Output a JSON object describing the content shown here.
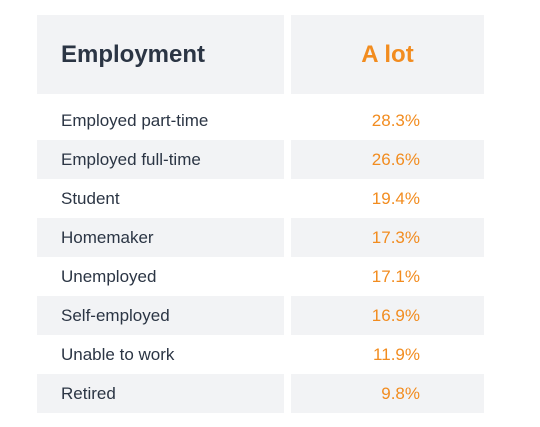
{
  "table": {
    "header": {
      "category": "Employment",
      "value": "A lot"
    },
    "rows": [
      {
        "label": "Employed part-time",
        "value": "28.3%"
      },
      {
        "label": "Employed full-time",
        "value": "26.6%"
      },
      {
        "label": "Student",
        "value": "19.4%"
      },
      {
        "label": "Homemaker",
        "value": "17.3%"
      },
      {
        "label": "Unemployed",
        "value": "17.1%"
      },
      {
        "label": "Self-employed",
        "value": "16.9%"
      },
      {
        "label": "Unable to work",
        "value": "11.9%"
      },
      {
        "label": "Retired",
        "value": "9.8%"
      }
    ]
  },
  "colors": {
    "header_bg": "#f2f3f5",
    "row_alt_bg": "#f2f3f5",
    "text_dark": "#2b3544",
    "accent_orange": "#f28c1f"
  }
}
